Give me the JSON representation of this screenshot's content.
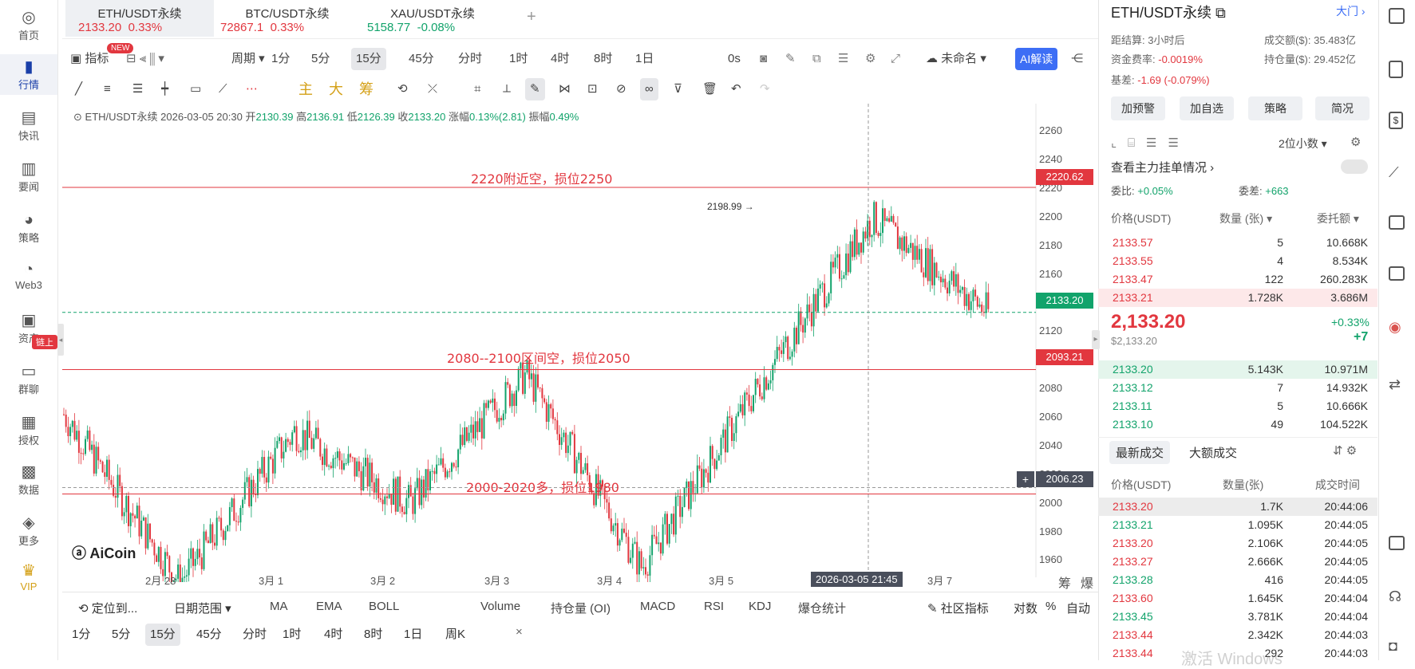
{
  "sidebar": {
    "items": [
      {
        "label": "首页",
        "icon": "home-icon"
      },
      {
        "label": "行情",
        "icon": "chart-bars-icon"
      },
      {
        "label": "快讯",
        "icon": "news-icon"
      },
      {
        "label": "要闻",
        "icon": "document-icon"
      },
      {
        "label": "策略",
        "icon": "robot-icon"
      },
      {
        "label": "Web3",
        "icon": "web3-icon"
      },
      {
        "label": "资产",
        "icon": "wallet-icon"
      },
      {
        "label": "群聊",
        "icon": "chat-icon"
      },
      {
        "label": "授权",
        "icon": "key-icon"
      },
      {
        "label": "数据",
        "icon": "data-icon"
      },
      {
        "label": "更多",
        "icon": "grid-icon"
      },
      {
        "label": "VIP",
        "icon": "crown-icon"
      }
    ],
    "asset_badge": "链上"
  },
  "tabs": [
    {
      "name": "ETH/USDT永续",
      "price": "2133.20",
      "change": "0.33%"
    },
    {
      "name": "BTC/USDT永续",
      "price": "72867.1",
      "change": "0.33%"
    },
    {
      "name": "XAU/USDT永续",
      "price": "5158.77",
      "change": "-0.08%"
    }
  ],
  "add_tab": "+",
  "toolbar": {
    "indicator_label": "指标",
    "new_badge": "NEW",
    "period_label": "周期",
    "periods": [
      "1分",
      "5分",
      "15分",
      "45分",
      "分时",
      "1时",
      "4时",
      "8时",
      "1日"
    ],
    "selected_period": "15分",
    "countdown": "0s",
    "layout_name": "未命名",
    "ai_button": "AI解读"
  },
  "drawing_tools": {
    "main": "主",
    "big": "大",
    "chip": "筹"
  },
  "ohlc": {
    "symbol": "ETH/USDT永续",
    "datetime": "2026-03-05 20:30",
    "open_label": "开",
    "open": "2130.39",
    "high_label": "高",
    "high": "2136.91",
    "low_label": "低",
    "low": "2126.39",
    "close_label": "收",
    "close": "2133.20",
    "change_label": "涨幅",
    "change": "0.13%(2.81)",
    "amp_label": "振幅",
    "amp": "0.49%"
  },
  "chart": {
    "annotations": [
      "2220附近空，损位2250",
      "2080--2100区间空，损位2050",
      "2000-2020多，损位1980"
    ],
    "line_tags": [
      "2220.62",
      "2093.21",
      "2006.23"
    ],
    "current_price_tag": "2133.20",
    "high_marker": "2198.99",
    "crosshair_time": "2026-03-05 21:45",
    "watermark": "AiCoin",
    "right_bottom_labels": [
      "筹",
      "爆"
    ]
  },
  "chart_data": {
    "type": "candlestick",
    "title": "",
    "ylabel": "",
    "y_ticks": [
      1960,
      1980,
      2000,
      2020,
      2040,
      2060,
      2080,
      2100,
      2120,
      2140,
      2160,
      2180,
      2200,
      2220,
      2240,
      2260
    ],
    "ylim": [
      1948,
      2268
    ],
    "x_ticks": [
      "2月 28",
      "3月 1",
      "3月 2",
      "3月 3",
      "3月 4",
      "3月 5",
      "3月 7"
    ],
    "horizontal_lines": [
      2220.62,
      2093.21,
      2006.23
    ],
    "current_price": 2133.2,
    "key_points": {
      "x": [
        "2月27",
        "2月28",
        "3月1",
        "3月2",
        "3月3",
        "3月4",
        "3月5",
        "3月5 12h",
        "3月5 20h"
      ],
      "close": [
        2062,
        1945,
        2050,
        2000,
        2090,
        1955,
        2080,
        2198.99,
        2133.2
      ]
    }
  },
  "bottom_bar": {
    "locate": "定位到...",
    "date_range": "日期范围",
    "indicators": [
      "MA",
      "EMA",
      "BOLL",
      "Volume",
      "持仓量 (OI)",
      "MACD",
      "RSI",
      "KDJ",
      "爆仓统计"
    ],
    "community": "社区指标",
    "log": "对数",
    "pct": "%",
    "auto": "自动",
    "periods": [
      "1分",
      "5分",
      "15分",
      "45分",
      "分时",
      "1时",
      "4时",
      "8时",
      "1日",
      "周K"
    ],
    "selected": "15分",
    "close": "×"
  },
  "right_panel": {
    "title": "ETH/USDT永续",
    "big_door": "大门",
    "stats": [
      {
        "label": "距结算:",
        "value": "3小时后"
      },
      {
        "label": "成交额($):",
        "value": "35.483亿"
      },
      {
        "label": "资金费率:",
        "value": "-0.0019%"
      },
      {
        "label": "持仓量($):",
        "value": "29.452亿"
      },
      {
        "label": "基差:",
        "value": "-1.69 (-0.079%)"
      }
    ],
    "buttons": [
      "加预警",
      "加自选",
      "策略",
      "简况"
    ],
    "decimals": "2位小数",
    "main_orders": "查看主力挂单情况",
    "ratio_label": "委比:",
    "ratio": "+0.05%",
    "diff_label": "委差:",
    "diff": "+663",
    "headers": [
      "价格(USDT)",
      "数量 (张)",
      "委托额"
    ],
    "asks": [
      {
        "p": "2133.57",
        "q": "5",
        "t": "10.668K"
      },
      {
        "p": "2133.55",
        "q": "4",
        "t": "8.534K"
      },
      {
        "p": "2133.47",
        "q": "122",
        "t": "260.283K"
      },
      {
        "p": "2133.21",
        "q": "1.728K",
        "t": "3.686M"
      }
    ],
    "last_price": "2,133.20",
    "last_price_usd": "$2,133.20",
    "last_change_pct": "+0.33%",
    "last_change": "+7",
    "bids": [
      {
        "p": "2133.20",
        "q": "5.143K",
        "t": "10.971M"
      },
      {
        "p": "2133.12",
        "q": "7",
        "t": "14.932K"
      },
      {
        "p": "2133.11",
        "q": "5",
        "t": "10.666K"
      },
      {
        "p": "2133.10",
        "q": "49",
        "t": "104.522K"
      }
    ],
    "trade_tabs": [
      "最新成交",
      "大额成交"
    ],
    "trade_headers": [
      "价格(USDT)",
      "数量(张)",
      "成交时间"
    ],
    "trades": [
      {
        "p": "2133.20",
        "q": "1.7K",
        "t": "20:44:06",
        "side": "sell"
      },
      {
        "p": "2133.21",
        "q": "1.095K",
        "t": "20:44:05",
        "side": "buy"
      },
      {
        "p": "2133.20",
        "q": "2.106K",
        "t": "20:44:05",
        "side": "sell"
      },
      {
        "p": "2133.27",
        "q": "2.666K",
        "t": "20:44:05",
        "side": "sell"
      },
      {
        "p": "2133.28",
        "q": "416",
        "t": "20:44:05",
        "side": "buy"
      },
      {
        "p": "2133.60",
        "q": "1.645K",
        "t": "20:44:04",
        "side": "sell"
      },
      {
        "p": "2133.45",
        "q": "3.781K",
        "t": "20:44:04",
        "side": "buy"
      },
      {
        "p": "2133.44",
        "q": "2.342K",
        "t": "20:44:03",
        "side": "sell"
      },
      {
        "p": "2133.44",
        "q": "292",
        "t": "20:44:03",
        "side": "sell"
      }
    ],
    "windows_watermark": "激活 Windows"
  },
  "colors": {
    "up": "#12a36b",
    "down": "#e2373f",
    "accent": "#1a3fa8",
    "ai": "#3d6ef5"
  }
}
